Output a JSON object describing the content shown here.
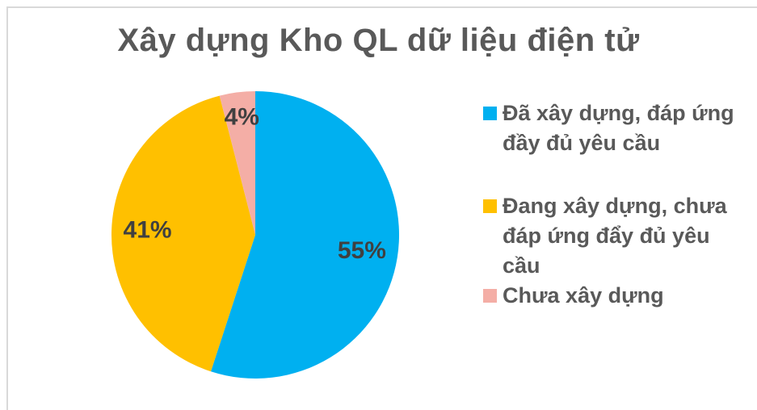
{
  "chart_data": {
    "type": "pie",
    "title": "Xây dựng Kho QL dữ liệu điện tử",
    "categories": [
      "Đã xây dựng, đáp ứng đầy đủ yêu cầu",
      "Đang xây dựng, chưa đáp ứng đẩy đủ yêu cầu",
      "Chưa xây dựng"
    ],
    "values": [
      55,
      41,
      4
    ],
    "value_labels": [
      "55%",
      "41%",
      "4%"
    ],
    "colors": [
      "#00b0f0",
      "#ffc000",
      "#f4aea6"
    ],
    "legend": "right"
  }
}
